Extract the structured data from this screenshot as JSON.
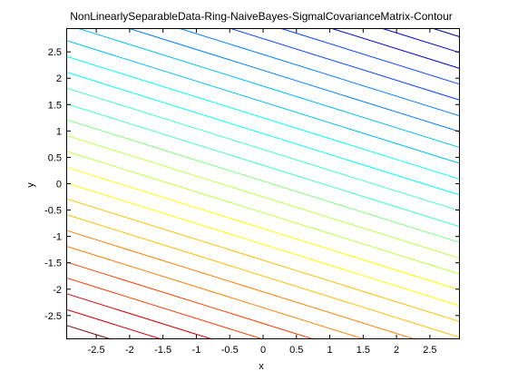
{
  "chart_data": {
    "type": "contour",
    "title": "NonLinearlySeparableData-Ring-NaiveBayes-SigmalCovarianceMatrix-Contour",
    "xlabel": "x",
    "ylabel": "y",
    "xlim": [
      -2.95,
      2.95
    ],
    "ylim": [
      -2.95,
      2.95
    ],
    "xticks": [
      "-2.5",
      "-2",
      "-1.5",
      "-1",
      "-0.5",
      "0",
      "0.5",
      "1",
      "1.5",
      "2",
      "2.5"
    ],
    "yticks": [
      "2.5",
      "2",
      "1.5",
      "1",
      "0.5",
      "0",
      "-0.5",
      "-1",
      "-1.5",
      "-2",
      "-2.5"
    ],
    "xtick_values": [
      -2.5,
      -2,
      -1.5,
      -1,
      -0.5,
      0,
      0.5,
      1,
      1.5,
      2,
      2.5
    ],
    "ytick_values": [
      2.5,
      2,
      1.5,
      1,
      0.5,
      0,
      -0.5,
      -1,
      -1.5,
      -2,
      -2.5
    ],
    "contour_function": "0.395*x + y",
    "contour_levels": [
      -3.85,
      -3.55,
      -3.25,
      -2.95,
      -2.65,
      -2.35,
      -2.05,
      -1.75,
      -1.45,
      -1.15,
      -0.85,
      -0.55,
      -0.25,
      0.05,
      0.35,
      0.65,
      0.95,
      1.25,
      1.55,
      1.85,
      2.15,
      2.45,
      2.75,
      3.05,
      3.35,
      3.65,
      3.95
    ],
    "colormap": [
      "#7f0000",
      "#d40000",
      "#ff4000",
      "#ff8000",
      "#ffbf00",
      "#ffff00",
      "#bfff40",
      "#80ff80",
      "#40ffbf",
      "#00ffff",
      "#00bfff",
      "#0080ff",
      "#0040ff",
      "#0000d4",
      "#00007f"
    ],
    "grid": false,
    "box": true
  }
}
